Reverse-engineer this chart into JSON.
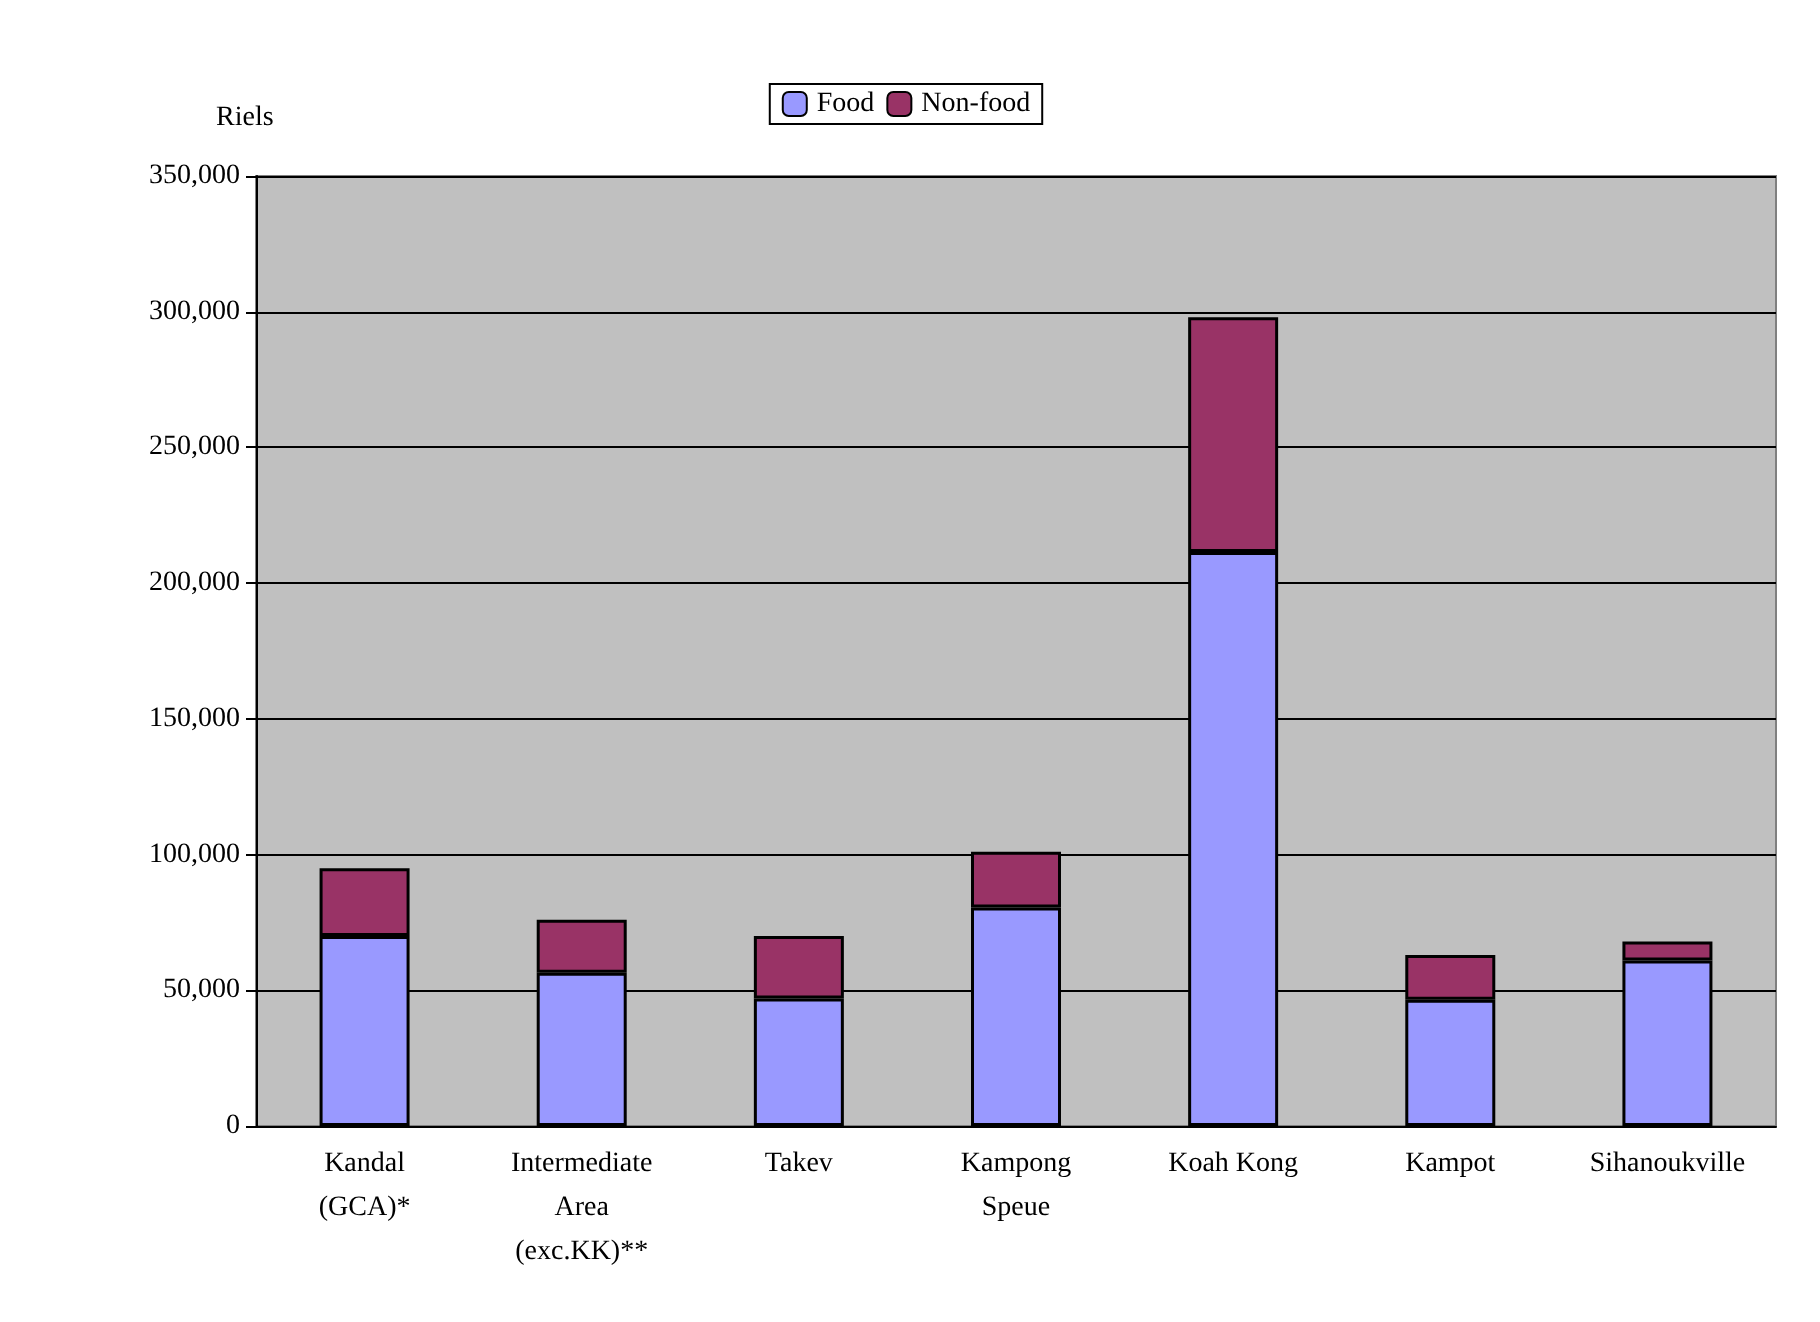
{
  "chart_data": {
    "type": "bar",
    "stacked": true,
    "ylabel": "Riels",
    "categories": [
      "Kandal\n(GCA)*",
      "Intermediate\nArea\n(exc.KK)**",
      "Takev",
      "Kampong\nSpeue",
      "Koah Kong",
      "Kampot",
      "Sihanoukville"
    ],
    "series": [
      {
        "name": "Food",
        "color": "#9999ff",
        "values": [
          70000,
          56500,
          47000,
          80500,
          211500,
          46500,
          61000
        ]
      },
      {
        "name": "Non-food",
        "color": "#993366",
        "values": [
          25000,
          19500,
          23000,
          20500,
          86500,
          16500,
          7000
        ]
      }
    ],
    "ylim": [
      0,
      350000
    ],
    "yticks": [
      {
        "value": 0,
        "label": "0"
      },
      {
        "value": 50000,
        "label": "50,000"
      },
      {
        "value": 100000,
        "label": "100,000"
      },
      {
        "value": 150000,
        "label": "150,000"
      },
      {
        "value": 200000,
        "label": "200,000"
      },
      {
        "value": 250000,
        "label": "250,000"
      },
      {
        "value": 300000,
        "label": "300,000"
      },
      {
        "value": 350000,
        "label": "350,000"
      }
    ],
    "grid": "y",
    "legend": "top"
  }
}
